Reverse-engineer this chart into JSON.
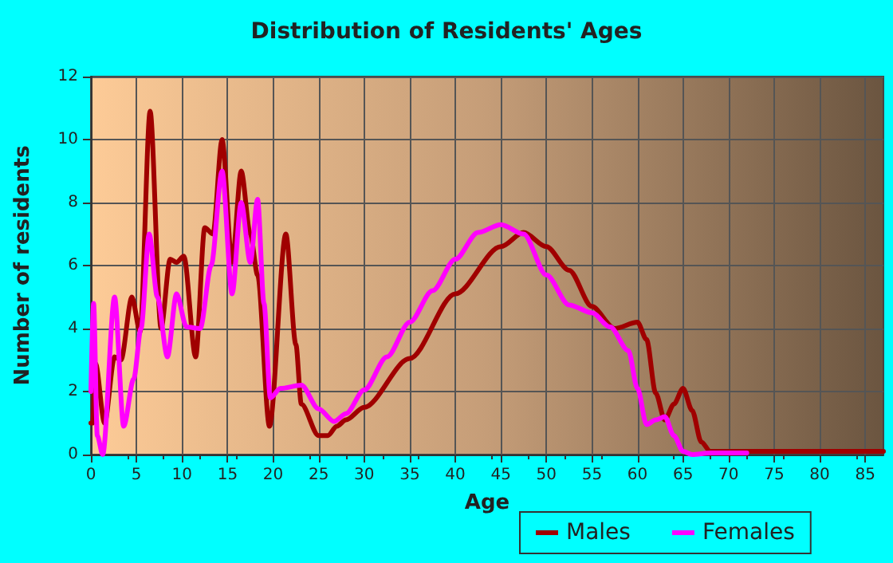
{
  "chart_data": {
    "type": "line",
    "title": "Distribution of Residents' Ages",
    "xlabel": "Age",
    "ylabel": "Number of residents",
    "xlim": [
      0,
      87
    ],
    "xticks": [
      0,
      5,
      10,
      15,
      20,
      25,
      30,
      35,
      40,
      45,
      50,
      55,
      60,
      65,
      70,
      75,
      80,
      85
    ],
    "ylim": [
      0,
      12
    ],
    "yticks": [
      0,
      2,
      4,
      6,
      8,
      10,
      12
    ],
    "grid": true,
    "legend": "bottom",
    "marker": "none",
    "line_style": "solid",
    "series": [
      {
        "name": "Males",
        "color": "#a00000",
        "x": [
          0,
          0.2,
          0.5,
          1.5,
          2.6,
          3.3,
          4.5,
          5.4,
          6.5,
          7.7,
          8.7,
          9.4,
          10.2,
          11.5,
          12.5,
          13.4,
          14.4,
          15.5,
          16.5,
          17.5,
          18.3,
          19.6,
          21.4,
          22.5,
          23.1,
          25,
          26,
          27,
          28,
          30,
          35,
          40,
          45,
          47.5,
          50,
          52.5,
          55,
          57.5,
          60,
          61,
          62,
          63,
          64,
          65,
          66,
          67,
          68,
          70,
          87
        ],
        "values": [
          1,
          1,
          2.9,
          1,
          3.1,
          3,
          5,
          3.9,
          10.9,
          4,
          6.2,
          6.1,
          6.3,
          3.1,
          7.2,
          7,
          10,
          6.1,
          9,
          7,
          5.7,
          0.9,
          7,
          3.5,
          1.6,
          0.6,
          0.6,
          0.9,
          1.1,
          1.5,
          3.05,
          5.1,
          6.6,
          7.05,
          6.6,
          5.85,
          4.7,
          4,
          4.2,
          3.65,
          1.95,
          1.1,
          1.6,
          2.1,
          1.4,
          0.4,
          0.1,
          0.1,
          0.1
        ]
      },
      {
        "name": "Females",
        "color": "#ff00ff",
        "x": [
          0,
          0.3,
          0.7,
          1.3,
          2.6,
          3.6,
          4.7,
          5.5,
          6.4,
          7.3,
          8.4,
          9.4,
          10.5,
          12,
          13.2,
          14.4,
          15.5,
          16.5,
          17.5,
          18.3,
          19,
          19.7,
          20.8,
          23.1,
          25,
          26.7,
          28,
          30,
          32.5,
          35,
          37.5,
          40,
          42.5,
          45,
          47.5,
          50,
          52.5,
          55,
          57,
          59,
          60,
          61,
          62,
          63,
          64,
          65,
          66,
          68,
          72
        ],
        "values": [
          2,
          4.8,
          0.6,
          0,
          5,
          0.9,
          2.4,
          4,
          7,
          5,
          3.1,
          5.1,
          4.05,
          4,
          6,
          9,
          5.1,
          8,
          6.1,
          8.1,
          4.8,
          1.8,
          2.1,
          2.2,
          1.45,
          1.05,
          1.3,
          2.05,
          3.1,
          4.2,
          5.2,
          6.2,
          7.05,
          7.3,
          7,
          5.7,
          4.75,
          4.5,
          4.05,
          3.3,
          2.1,
          0.95,
          1.1,
          1.2,
          0.6,
          0.1,
          0,
          0.05,
          0.05
        ]
      }
    ]
  }
}
